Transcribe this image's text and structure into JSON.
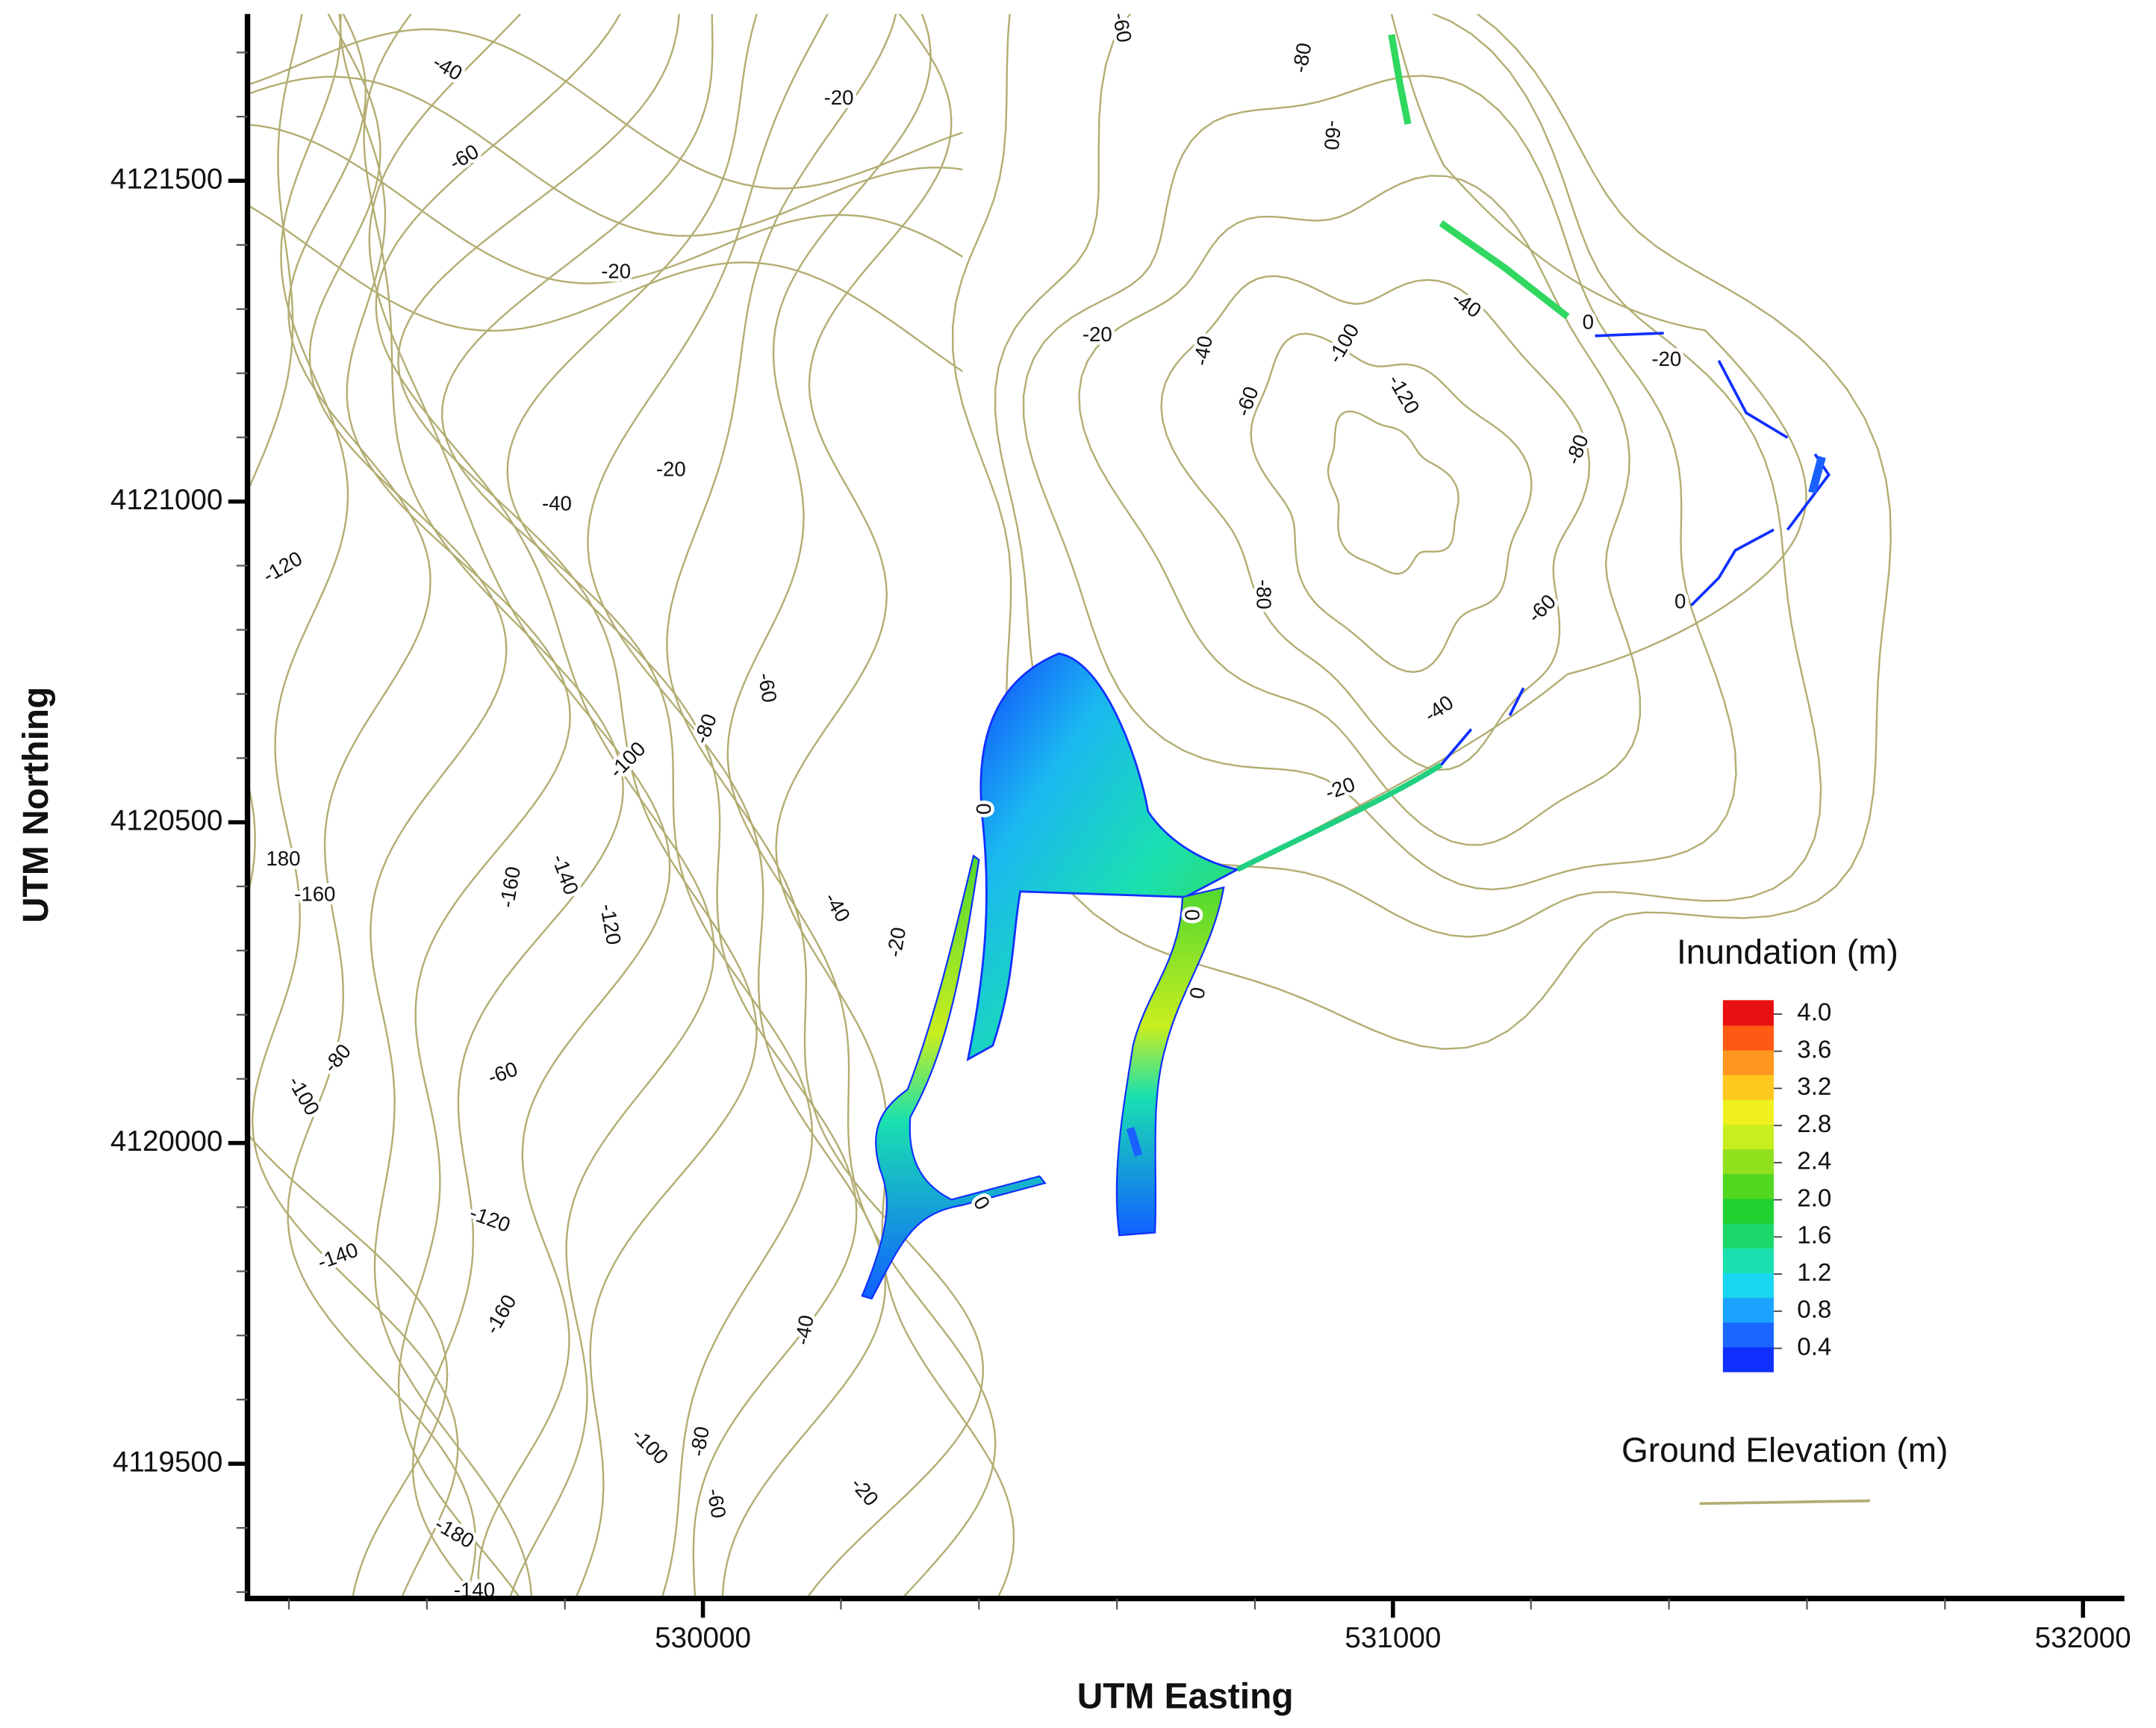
{
  "chart_data": {
    "type": "contour",
    "xlabel": "UTM Easting",
    "ylabel": "UTM Northing",
    "xlim": [
      529340,
      532060
    ],
    "ylim": [
      4119290,
      4121760
    ],
    "xticks": [
      530000,
      531000,
      532000
    ],
    "yticks": [
      4119500,
      4120000,
      4120500,
      4121000,
      4121500
    ],
    "xminorticks": [
      529400,
      529600,
      529800,
      530200,
      530400,
      530600,
      530800,
      531200,
      531400,
      531600,
      531800
    ],
    "yminorticks": [
      4119300,
      4119400,
      4119600,
      4119700,
      4119800,
      4119900,
      4120100,
      4120200,
      4120300,
      4120400,
      4120600,
      4120700,
      4120800,
      4120900,
      4121100,
      4121200,
      4121300,
      4121400,
      4121600,
      4121700
    ],
    "contour_color": "#b3ad72",
    "contour_labels": [
      -40,
      -60,
      -20,
      -60,
      -80,
      -60,
      -20,
      -40,
      0,
      -20,
      -20,
      -40,
      -100,
      -120,
      -60,
      -80,
      -20,
      -40,
      -120,
      -80,
      -60,
      0,
      -40,
      -60,
      -80,
      -100,
      -20,
      0,
      180,
      -160,
      -160,
      -140,
      -120,
      -40,
      -20,
      0,
      0,
      -80,
      -100,
      -60,
      0,
      -120,
      -140,
      -160,
      -40,
      -100,
      -80,
      -60,
      -20,
      -180,
      -140
    ],
    "colorbar": {
      "title": "Inundation (m)",
      "clim": [
        0.15,
        4.15
      ],
      "ticks": [
        {
          "value": 4,
          "label": "4.0"
        },
        3.6,
        3.2,
        2.8,
        2.4,
        {
          "value": 2,
          "label": "2.0"
        },
        1.6,
        1.2,
        0.8,
        0.4
      ],
      "colors": [
        "#1030ff",
        "#1a66ff",
        "#1aa3ff",
        "#19d6f0",
        "#1ae0b0",
        "#1ad86a",
        "#20d030",
        "#50d81e",
        "#90e01e",
        "#c8ee1e",
        "#f0f01e",
        "#ffc81e",
        "#ff961e",
        "#ff5a14",
        "#e81010"
      ]
    },
    "legend": {
      "title": "Ground Elevation (m)"
    }
  }
}
